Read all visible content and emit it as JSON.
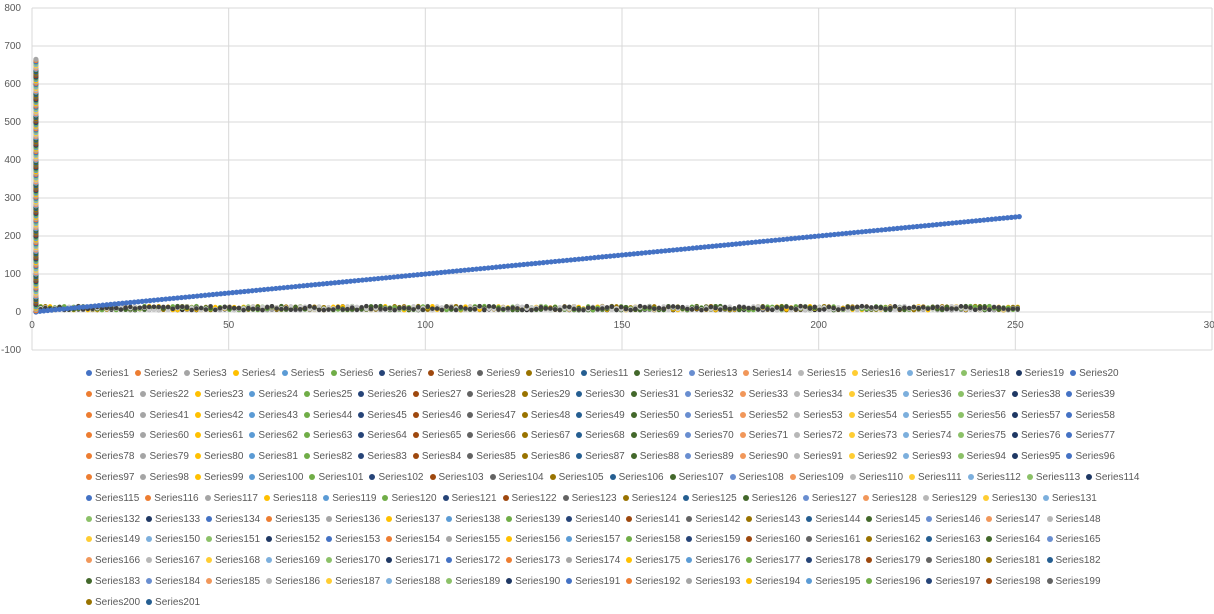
{
  "chart_data": {
    "type": "scatter",
    "title": "",
    "xlabel": "",
    "ylabel": "",
    "xlim": [
      0,
      300
    ],
    "ylim": [
      -100,
      800
    ],
    "x_ticks": [
      "0",
      "50",
      "100",
      "150",
      "200",
      "250",
      "300"
    ],
    "y_ticks": [
      "-100",
      "0",
      "100",
      "200",
      "300",
      "400",
      "500",
      "600",
      "700",
      "800"
    ],
    "grid": true,
    "legend_position": "bottom",
    "series_count": 201,
    "series_name_prefix": "Series",
    "palette": [
      "#4472c4",
      "#ed7d31",
      "#a5a5a5",
      "#ffc000",
      "#5b9bd5",
      "#70ad47",
      "#264478",
      "#9e480e",
      "#636363",
      "#997300",
      "#255e91",
      "#43682b",
      "#698ed0",
      "#f1975a",
      "#b7b7b7",
      "#ffcd33",
      "#7cafdd",
      "#8cc168"
    ],
    "series": [
      {
        "name": "Series1",
        "color": "#4472c4",
        "x_range": [
          1,
          251
        ],
        "y_start": 1,
        "y_end": 251,
        "note_trend": "linear"
      },
      {
        "name": "Series2-201",
        "x_range": [
          1,
          251
        ],
        "y_band": [
          0,
          25
        ]
      }
    ],
    "x0_stack": {
      "x": 1,
      "y_range": [
        0,
        665
      ]
    }
  }
}
